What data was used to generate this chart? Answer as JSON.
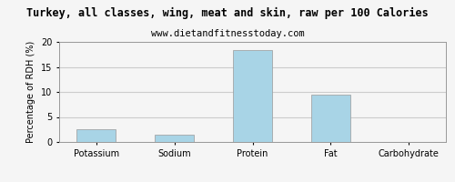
{
  "title": "Turkey, all classes, wing, meat and skin, raw per 100 Calories",
  "subtitle": "www.dietandfitnesstoday.com",
  "categories": [
    "Potassium",
    "Sodium",
    "Protein",
    "Fat",
    "Carbohydrate"
  ],
  "values": [
    2.5,
    1.5,
    18.3,
    9.5,
    0.05
  ],
  "bar_color": "#a8d4e6",
  "bar_edge_color": "#999999",
  "ylabel": "Percentage of RDH (%)",
  "ylim": [
    0,
    20
  ],
  "yticks": [
    0,
    5,
    10,
    15,
    20
  ],
  "background_color": "#f5f5f5",
  "plot_bg_color": "#f5f5f5",
  "title_fontsize": 8.5,
  "subtitle_fontsize": 7.5,
  "ylabel_fontsize": 7,
  "tick_fontsize": 7,
  "grid_color": "#cccccc",
  "border_color": "#999999"
}
